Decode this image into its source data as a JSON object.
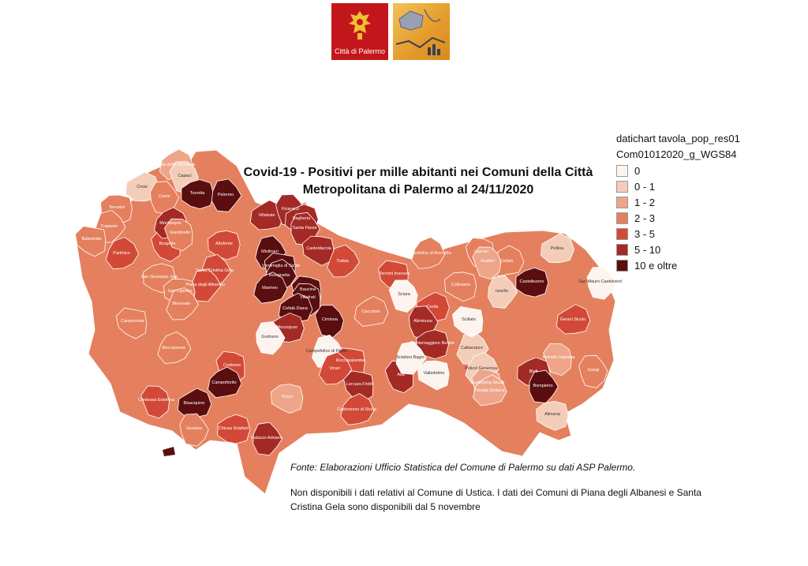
{
  "header": {
    "logo_city_text": "Città di Palermo",
    "logo_city_icon": "eagle-crest-icon",
    "logo_stat_icon": "statistics-office-icon"
  },
  "title": {
    "line1": "Covid-19 - Positivi per mille abitanti nei Comuni della Città",
    "line2": "Metropolitana di Palermo al 24/11/2020"
  },
  "legend": {
    "layer": "datichart tavola_pop_res01",
    "source_layer": "Com01012020_g_WGS84",
    "classes": [
      {
        "label": "0",
        "color": "#fdf4ef"
      },
      {
        "label": "0 - 1",
        "color": "#f4cdb9"
      },
      {
        "label": "1 - 2",
        "color": "#eea58a"
      },
      {
        "label": "2 - 3",
        "color": "#e4805e"
      },
      {
        "label": "3 - 5",
        "color": "#d24a37"
      },
      {
        "label": "5 - 10",
        "color": "#a42a25"
      },
      {
        "label": "10 e oltre",
        "color": "#5a0e0f"
      }
    ]
  },
  "map": {
    "municipalities": [
      {
        "name": "Isola delle Femmine",
        "class": 2
      },
      {
        "name": "Capaci",
        "class": 1
      },
      {
        "name": "Cinisi",
        "class": 1
      },
      {
        "name": "Carini",
        "class": 3
      },
      {
        "name": "Torretta",
        "class": 6
      },
      {
        "name": "Palermo",
        "class": 6
      },
      {
        "name": "Terrasini",
        "class": 3
      },
      {
        "name": "Trappeto",
        "class": 3
      },
      {
        "name": "Balestrate",
        "class": 3
      },
      {
        "name": "Partinico",
        "class": 4
      },
      {
        "name": "Borgetto",
        "class": 4
      },
      {
        "name": "Montelepre",
        "class": 5
      },
      {
        "name": "Giardinello",
        "class": 3
      },
      {
        "name": "Villabate",
        "class": 5
      },
      {
        "name": "Ficarazzi",
        "class": 5
      },
      {
        "name": "Bagheria",
        "class": 5
      },
      {
        "name": "Santa Flavia",
        "class": 5
      },
      {
        "name": "Altofonte",
        "class": 4
      },
      {
        "name": "Misilmeri",
        "class": 6
      },
      {
        "name": "Casteldaccia",
        "class": 5
      },
      {
        "name": "Trabia",
        "class": 4
      },
      {
        "name": "Termini Imerese",
        "class": 4
      },
      {
        "name": "Campofelice di Roccella",
        "class": 3
      },
      {
        "name": "Lascari",
        "class": 3
      },
      {
        "name": "Cefalù",
        "class": 3
      },
      {
        "name": "Gratteri",
        "class": 2
      },
      {
        "name": "Pollina",
        "class": 1
      },
      {
        "name": "San Mauro Castelverde",
        "class": 0
      },
      {
        "name": "Castelbuono",
        "class": 6
      },
      {
        "name": "Isnello",
        "class": 1
      },
      {
        "name": "Collesano",
        "class": 3
      },
      {
        "name": "Santa Cristina Gela",
        "class": 4
      },
      {
        "name": "Ventimiglia di Sicilia",
        "class": 6
      },
      {
        "name": "Bolognetta",
        "class": 6
      },
      {
        "name": "Baucina",
        "class": 6
      },
      {
        "name": "Marineo",
        "class": 6
      },
      {
        "name": "Villafrati",
        "class": 6
      },
      {
        "name": "Cefalà Diana",
        "class": 6
      },
      {
        "name": "Ciminna",
        "class": 6
      },
      {
        "name": "Mezzojuso",
        "class": 5
      },
      {
        "name": "Godrano",
        "class": 0
      },
      {
        "name": "San Giuseppe Jato",
        "class": 3
      },
      {
        "name": "Piana degli Albanesi",
        "class": 4
      },
      {
        "name": "San Cipirello",
        "class": 3
      },
      {
        "name": "Monreale",
        "class": 3
      },
      {
        "name": "Camporeale",
        "class": 3
      },
      {
        "name": "Roccamena",
        "class": 3
      },
      {
        "name": "Corleone",
        "class": 4
      },
      {
        "name": "Campofiorito",
        "class": 6
      },
      {
        "name": "Contessa Entellina",
        "class": 4
      },
      {
        "name": "Bisacquino",
        "class": 6
      },
      {
        "name": "Giuliana",
        "class": 3
      },
      {
        "name": "Chiusa Sclafani",
        "class": 4
      },
      {
        "name": "Palazzo Adriano",
        "class": 5
      },
      {
        "name": "Prizzi",
        "class": 2
      },
      {
        "name": "Campofelice di Fitalia",
        "class": 0
      },
      {
        "name": "Roccapalumba",
        "class": 4
      },
      {
        "name": "Vicari",
        "class": 4
      },
      {
        "name": "Lercara Friddi",
        "class": 5
      },
      {
        "name": "Castronovo di Sicilia",
        "class": 4
      },
      {
        "name": "Alia",
        "class": 5
      },
      {
        "name": "Caccamo",
        "class": 3
      },
      {
        "name": "Sciara",
        "class": 0
      },
      {
        "name": "Cerda",
        "class": 4
      },
      {
        "name": "Aliminusa",
        "class": 5
      },
      {
        "name": "Montemaggiore Belsito",
        "class": 5
      },
      {
        "name": "Sclafani Bagni",
        "class": 0
      },
      {
        "name": "Valledolmo",
        "class": 0
      },
      {
        "name": "Caltavuturo",
        "class": 1
      },
      {
        "name": "Scillato",
        "class": 0
      },
      {
        "name": "Polizzi Generosa",
        "class": 1
      },
      {
        "name": "Castellana Sicula",
        "class": 2
      },
      {
        "name": "Petralia Sottana",
        "class": 2
      },
      {
        "name": "Petralia Soprana",
        "class": 2
      },
      {
        "name": "Geraci Siculo",
        "class": 4
      },
      {
        "name": "Gangi",
        "class": 3
      },
      {
        "name": "Blufi",
        "class": 5
      },
      {
        "name": "Bompietro",
        "class": 6
      },
      {
        "name": "Alimena",
        "class": 1
      }
    ]
  },
  "source": "Fonte: Elaborazioni Ufficio Statistica del Comune di Palermo su dati ASP Palermo.",
  "note": "Non disponibili i dati relativi al Comune di Ustica. I dati dei Comuni di Piana degli Albanesi e Santa Cristina Gela sono disponibili dal 5 novembre"
}
